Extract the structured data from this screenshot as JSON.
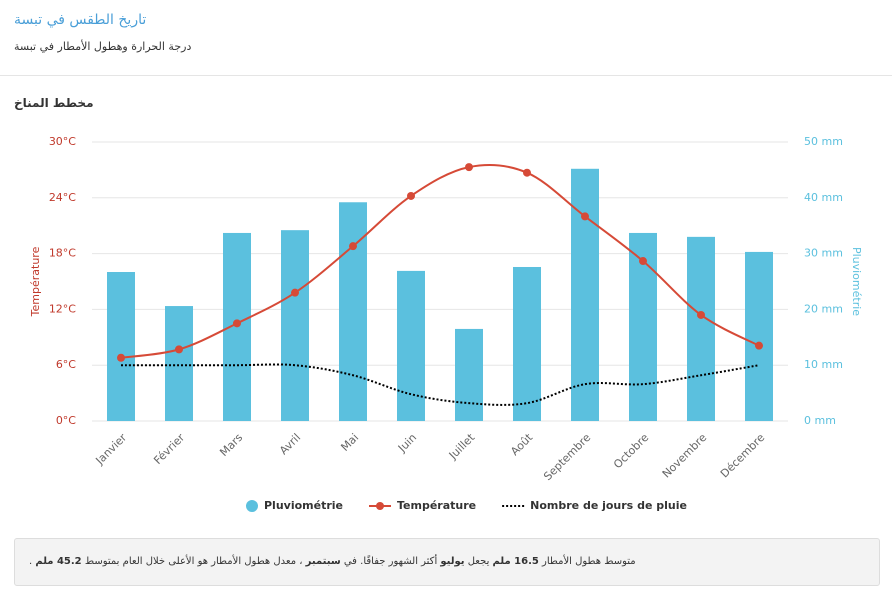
{
  "header": {
    "title": "تاريخ الطقس في تبسة",
    "subtitle": "درجة الحرارة وهطول الأمطار في تبسة"
  },
  "section": "مخطط المناخ",
  "chart_data": {
    "type": "combo",
    "categories": [
      "Janvier",
      "Février",
      "Mars",
      "Avril",
      "Mai",
      "Juin",
      "Juillet",
      "Août",
      "Septembre",
      "Octobre",
      "Novembre",
      "Décembre"
    ],
    "series": [
      {
        "name": "Pluviométrie",
        "type": "bar",
        "axis": "y2",
        "color": "#5bc0de",
        "values": [
          26.7,
          20.6,
          33.7,
          34.2,
          39.2,
          26.9,
          16.5,
          27.6,
          45.2,
          33.7,
          33.0,
          30.3
        ]
      },
      {
        "name": "Température",
        "type": "line",
        "axis": "y",
        "color": "#d64a37",
        "values": [
          6.8,
          7.7,
          10.5,
          13.8,
          18.8,
          24.2,
          27.3,
          26.7,
          22.0,
          17.2,
          11.4,
          8.1
        ]
      },
      {
        "name": "Nombre de jours de pluie",
        "type": "dotted",
        "axis": "y2",
        "color": "#000000",
        "values": [
          10,
          10,
          10,
          10,
          8.2,
          4.8,
          3.2,
          3.2,
          6.6,
          6.6,
          8.2,
          10
        ]
      }
    ],
    "ylabel": "Température",
    "y2label": "Pluviométrie",
    "ylim": [
      0,
      30
    ],
    "yticks": [
      {
        "value": 0,
        "label": "0°C"
      },
      {
        "value": 6,
        "label": "6°C"
      },
      {
        "value": 12,
        "label": "12°C"
      },
      {
        "value": 18,
        "label": "18°C"
      },
      {
        "value": 24,
        "label": "24°C"
      },
      {
        "value": 30,
        "label": "30°C"
      }
    ],
    "y2lim": [
      0,
      50
    ],
    "y2ticks": [
      {
        "value": 0,
        "label": "0 mm"
      },
      {
        "value": 10,
        "label": "10 mm"
      },
      {
        "value": 20,
        "label": "20 mm"
      },
      {
        "value": 30,
        "label": "30 mm"
      },
      {
        "value": 40,
        "label": "40 mm"
      },
      {
        "value": 50,
        "label": "50 mm"
      }
    ],
    "grid": true,
    "legend": "bottom"
  },
  "summary": [
    {
      "text": "متوسط هطول الأمطار "
    },
    {
      "text": "16.5 ملم",
      "bold": true
    },
    {
      "text": " يجعل "
    },
    {
      "text": "يوليو",
      "bold": true
    },
    {
      "text": " أكثر الشهور جفافًا. في "
    },
    {
      "text": "سبتمبر",
      "bold": true
    },
    {
      "text": " ، معدل هطول الأمطار هو الأعلى خلال العام بمتوسط "
    },
    {
      "text": "45.2 ملم",
      "bold": true
    },
    {
      "text": " ."
    }
  ]
}
